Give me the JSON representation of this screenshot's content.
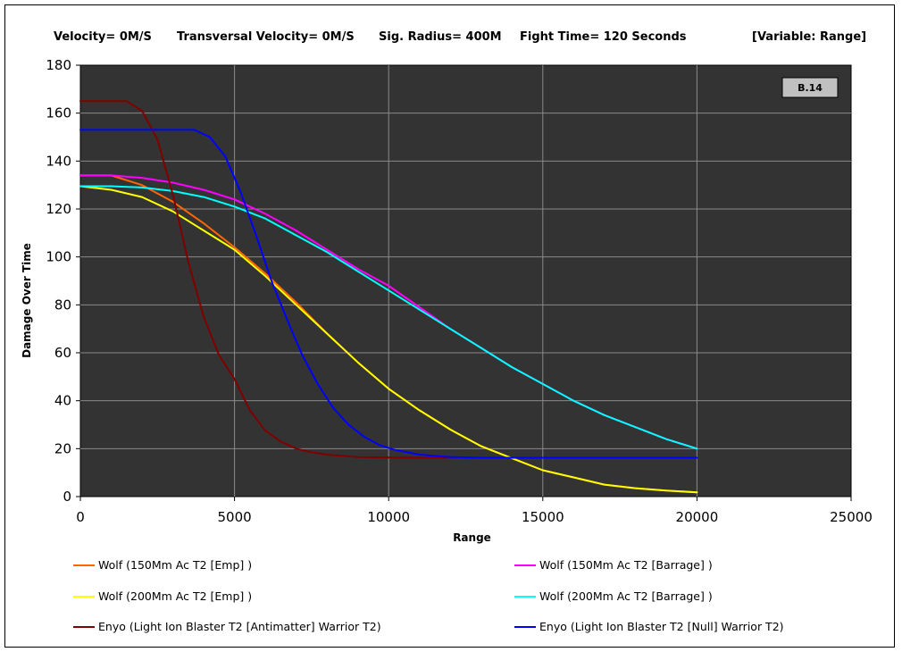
{
  "header": {
    "velocity": "Velocity= 0M/S",
    "transversal": "Transversal Velocity= 0M/S",
    "sig_radius": "Sig. Radius= 400M",
    "fight_time": "Fight Time= 120 Seconds",
    "variable": "[Variable: Range]"
  },
  "badge": "B.14",
  "colors": {
    "plot_bg": "#333333",
    "grid": "#8a8a8a"
  },
  "chart_data": {
    "type": "line",
    "xlabel": "Range",
    "ylabel": "Damage Over Time",
    "xlim": [
      0,
      25000
    ],
    "ylim": [
      0,
      180
    ],
    "x_ticks": [
      0,
      5000,
      10000,
      15000,
      20000,
      25000
    ],
    "y_ticks": [
      0,
      20,
      40,
      60,
      80,
      100,
      120,
      140,
      160,
      180
    ],
    "grid": true,
    "legend_position": "bottom",
    "series": [
      {
        "name": "Wolf (150Mm Ac T2 [Emp] )",
        "color": "#ff6600",
        "x": [
          0,
          1000,
          2000,
          3000,
          4000,
          5000,
          6000,
          7000,
          8000,
          9000,
          10000,
          11000,
          12000,
          13000,
          14000,
          15000,
          16000,
          17000,
          18000,
          19000,
          20000
        ],
        "y": [
          134,
          134,
          130,
          123,
          114,
          104,
          93,
          81,
          68,
          56,
          45,
          36,
          28,
          21,
          16,
          11,
          8,
          5,
          3.5,
          2.5,
          1.8
        ]
      },
      {
        "name": "Wolf (150Mm Ac T2 [Barrage] )",
        "color": "#ff00ff",
        "x": [
          0,
          1000,
          2000,
          3000,
          4000,
          5000,
          6000,
          7000,
          8000,
          9000,
          10000,
          11000,
          12000,
          13000,
          14000,
          15000,
          16000,
          17000,
          18000,
          19000,
          20000
        ],
        "y": [
          134,
          134,
          133,
          131,
          128,
          124,
          118,
          111,
          103,
          95,
          88,
          79,
          70,
          62,
          54,
          47,
          40,
          34,
          29,
          24,
          20
        ]
      },
      {
        "name": "Wolf (200Mm Ac T2 [Emp] )",
        "color": "#ffff00",
        "x": [
          0,
          1000,
          2000,
          3000,
          4000,
          5000,
          6000,
          7000,
          8000,
          9000,
          10000,
          11000,
          12000,
          13000,
          14000,
          15000,
          16000,
          17000,
          18000,
          19000,
          20000
        ],
        "y": [
          129.5,
          128,
          125,
          119,
          111,
          103,
          92,
          80,
          68,
          56,
          45,
          36,
          28,
          21,
          16,
          11,
          8,
          5,
          3.5,
          2.5,
          1.8
        ]
      },
      {
        "name": "Wolf (200Mm Ac T2 [Barrage] )",
        "color": "#00ffff",
        "x": [
          0,
          1000,
          2000,
          3000,
          4000,
          5000,
          6000,
          7000,
          8000,
          9000,
          10000,
          11000,
          12000,
          13000,
          14000,
          15000,
          16000,
          17000,
          18000,
          19000,
          20000
        ],
        "y": [
          129.5,
          129.5,
          129,
          127.5,
          125,
          121,
          116,
          109,
          102,
          94,
          86,
          78,
          70,
          62,
          54,
          47,
          40,
          34,
          29,
          24,
          20
        ]
      },
      {
        "name": "Enyo (Light Ion Blaster T2 [Antimatter] Warrior T2)",
        "color": "#800000",
        "x": [
          0,
          1500,
          2000,
          2500,
          3000,
          3500,
          4000,
          4500,
          5000,
          5500,
          6000,
          6500,
          7000,
          7500,
          8000,
          9000,
          10000,
          12000,
          15000,
          20000
        ],
        "y": [
          165,
          165,
          161,
          149,
          126,
          98,
          75,
          59,
          49,
          36,
          27.5,
          23,
          20,
          18.5,
          17.5,
          16.5,
          16.3,
          16.2,
          16.2,
          16.2
        ]
      },
      {
        "name": "Enyo (Light Ion Blaster T2 [Null] Warrior T2)",
        "color": "#0000ff",
        "x": [
          0,
          3700,
          4200,
          4700,
          5200,
          5700,
          6200,
          6700,
          7200,
          7700,
          8200,
          8700,
          9200,
          9700,
          10200,
          11000,
          12000,
          13000,
          15000,
          20000
        ],
        "y": [
          153,
          153,
          150,
          142,
          127,
          109,
          90,
          74,
          59,
          47,
          37,
          30,
          25,
          21.5,
          19.5,
          17.5,
          16.5,
          16.2,
          16.2,
          16.2
        ]
      }
    ]
  }
}
